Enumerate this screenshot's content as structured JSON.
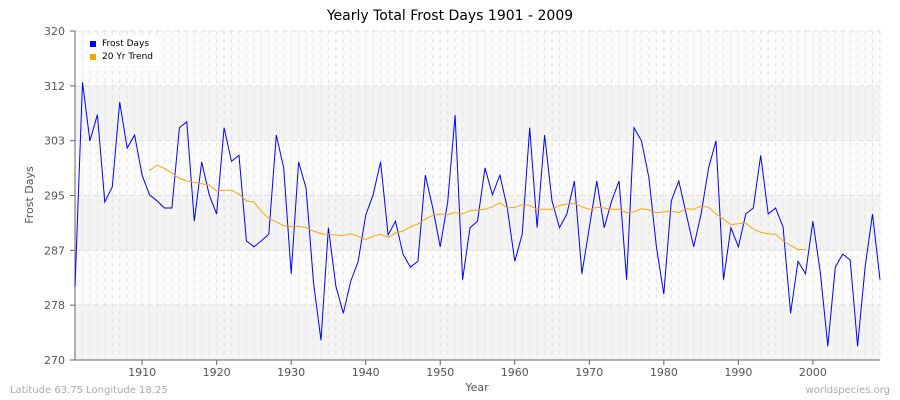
{
  "chart_data": {
    "type": "line",
    "title": "Yearly Total Frost Days 1901 - 2009",
    "xlabel": "Year",
    "ylabel": "Frost Days",
    "xlim": [
      1901,
      2009
    ],
    "ylim": [
      270,
      320
    ],
    "yticks": [
      270,
      278,
      287,
      295,
      303,
      312,
      320
    ],
    "xticks": [
      1910,
      1920,
      1930,
      1940,
      1950,
      1960,
      1970,
      1980,
      1990,
      2000
    ],
    "grid": true,
    "legend_position": "top-left",
    "series": [
      {
        "name": "Frost Days",
        "color": "#0000ff",
        "x_start": 1901,
        "values": [
          281.1,
          312.2,
          303.3,
          307.3,
          294.0,
          296.3,
          309.2,
          302.2,
          304.2,
          298.1,
          295.1,
          294.2,
          293.1,
          293.1,
          305.3,
          306.2,
          291.1,
          300.1,
          295.1,
          292.2,
          305.3,
          300.2,
          301.1,
          288.1,
          287.2,
          288.1,
          289.1,
          304.2,
          299.2,
          283.1,
          300.1,
          296.1,
          281.8,
          273.0,
          290.1,
          281.2,
          277.1,
          282.0,
          285.0,
          292.0,
          295.1,
          300.1,
          289.0,
          291.1,
          286.1,
          284.1,
          285.0,
          298.1,
          293.1,
          287.2,
          294.0,
          307.2,
          282.2,
          290.1,
          291.1,
          299.2,
          295.1,
          298.1,
          293.1,
          285.0,
          289.1,
          305.3,
          290.1,
          304.2,
          294.2,
          290.1,
          292.2,
          297.2,
          283.1,
          290.1,
          297.2,
          290.1,
          294.2,
          297.2,
          282.2,
          305.3,
          303.3,
          297.7,
          287.2,
          280.0,
          294.2,
          297.2,
          292.2,
          287.2,
          292.2,
          299.2,
          303.3,
          282.2,
          290.1,
          287.2,
          292.2,
          293.1,
          301.1,
          292.2,
          293.1,
          290.2,
          277.1,
          285.0,
          283.1,
          291.1,
          283.2,
          272.1,
          284.1,
          286.1,
          285.2,
          272.1,
          284.1,
          292.2,
          282.2
        ]
      },
      {
        "name": "20 Yr Trend",
        "color": "#ffa500",
        "x_start": 1911,
        "values": [
          298.8,
          299.6,
          299.1,
          298.4,
          297.6,
          297.2,
          297.0,
          296.8,
          296.6,
          295.7,
          295.8,
          295.8,
          295.2,
          294.2,
          294.0,
          292.6,
          291.5,
          291.0,
          290.4,
          290.3,
          290.3,
          290.1,
          289.6,
          289.2,
          289.1,
          289.0,
          288.9,
          289.2,
          288.8,
          288.3,
          288.8,
          289.1,
          288.6,
          289.3,
          289.6,
          290.2,
          290.7,
          291.4,
          292.0,
          292.2,
          292.1,
          292.4,
          292.2,
          292.7,
          292.8,
          292.9,
          293.3,
          293.9,
          293.1,
          293.2,
          293.6,
          293.5,
          292.9,
          292.9,
          292.9,
          293.5,
          293.7,
          293.8,
          293.3,
          292.9,
          293.2,
          293.1,
          292.9,
          292.9,
          292.4,
          292.5,
          293.0,
          292.8,
          292.4,
          292.5,
          292.6,
          292.4,
          293.0,
          292.9,
          293.4,
          293.2,
          292.2,
          291.4,
          290.6,
          290.7,
          290.8,
          289.9,
          289.4,
          289.2,
          289.1,
          288.1,
          287.4,
          286.8,
          286.8
        ]
      }
    ]
  },
  "footer": {
    "left": "Latitude 63.75 Longitude 18.25",
    "right": "worldspecies.org"
  }
}
